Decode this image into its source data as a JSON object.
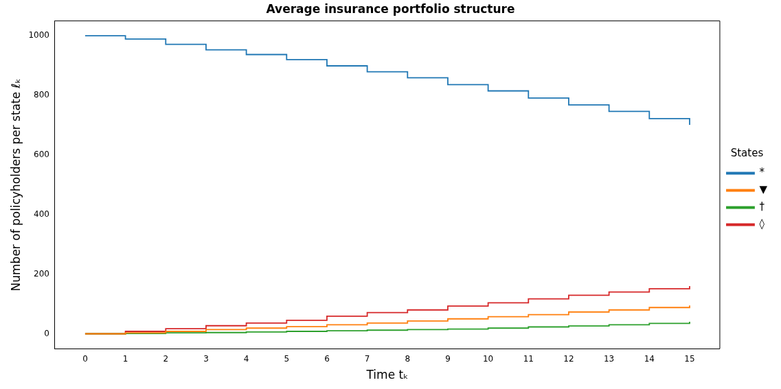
{
  "chart_data": {
    "type": "step",
    "title": "Average insurance portfolio structure",
    "xlabel": "Time tₖ",
    "ylabel": "Number of policyholders per state ℓₖ",
    "legend_title": "States",
    "x": [
      0,
      1,
      2,
      3,
      4,
      5,
      6,
      7,
      8,
      9,
      10,
      11,
      12,
      13,
      14,
      15
    ],
    "series": [
      {
        "name": "*",
        "color": "#1f77b4",
        "values": [
          1000,
          989,
          971,
          953,
          937,
          920,
          899,
          879,
          859,
          836,
          815,
          791,
          768,
          746,
          722,
          701
        ]
      },
      {
        "name": "▼",
        "color": "#ff7f0e",
        "values": [
          0,
          3,
          8,
          14,
          19,
          24,
          30,
          36,
          43,
          50,
          57,
          64,
          73,
          80,
          88,
          95
        ]
      },
      {
        "name": "†",
        "color": "#2ca02c",
        "values": [
          0,
          1,
          3,
          4,
          6,
          8,
          10,
          12,
          14,
          16,
          19,
          23,
          26,
          30,
          35,
          40
        ]
      },
      {
        "name": "◊",
        "color": "#d62728",
        "values": [
          0,
          8,
          17,
          27,
          36,
          45,
          59,
          71,
          80,
          93,
          104,
          117,
          129,
          140,
          151,
          160
        ]
      }
    ],
    "xlim": [
      -0.75,
      15.75
    ],
    "xticks": [
      0,
      1,
      2,
      3,
      4,
      5,
      6,
      7,
      8,
      9,
      10,
      11,
      12,
      13,
      14,
      15
    ],
    "ylim": [
      -50,
      1050
    ],
    "yticks": [
      0,
      200,
      400,
      600,
      800,
      1000
    ],
    "grid": false,
    "legend": "right"
  }
}
